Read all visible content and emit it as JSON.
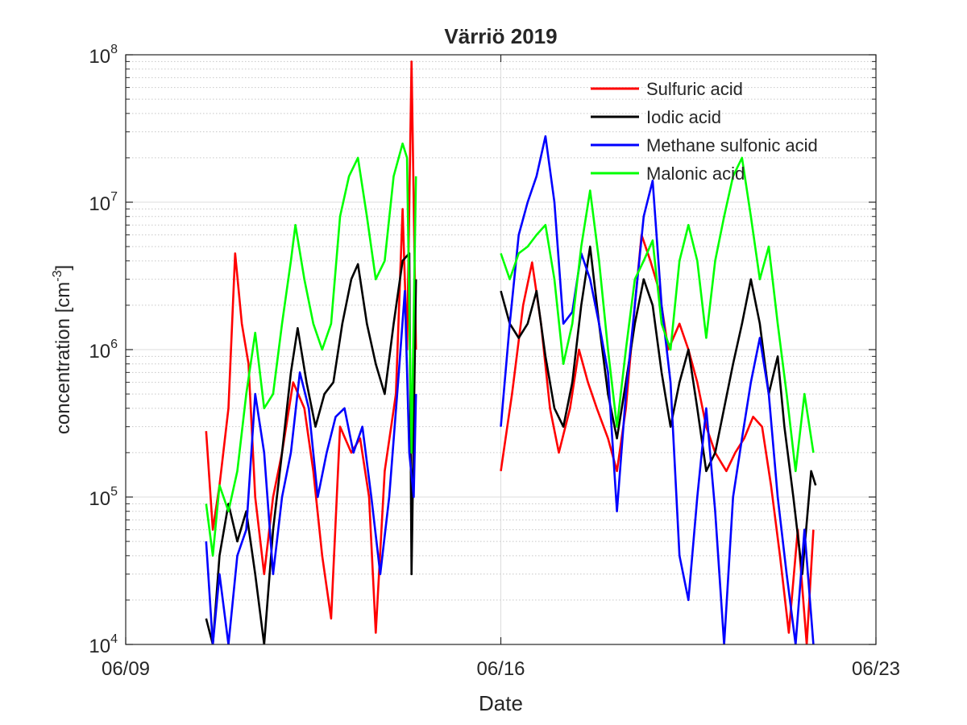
{
  "chart_data": {
    "type": "line",
    "title": "Värriö 2019",
    "xlabel": "Date",
    "ylabel": "concentration [cm",
    "ylabel_sup": "-3",
    "ylabel_end": "]",
    "y_scale": "log",
    "ylim": [
      10000,
      100000000
    ],
    "xlim": [
      "06/09",
      "06/23"
    ],
    "x_ticks": [
      "06/09",
      "06/16",
      "06/23"
    ],
    "y_ticks": [
      {
        "base": "10",
        "exp": "4"
      },
      {
        "base": "10",
        "exp": "5"
      },
      {
        "base": "10",
        "exp": "6"
      },
      {
        "base": "10",
        "exp": "7"
      },
      {
        "base": "10",
        "exp": "8"
      }
    ],
    "grid": true,
    "legend_position": "top-right",
    "series": [
      {
        "name": "Sulfuric acid",
        "color": "#ff0000",
        "points": [
          [
            "06/10 12:00",
            280000
          ],
          [
            "06/10 15:00",
            60000
          ],
          [
            "06/10 18:00",
            120000
          ],
          [
            "06/10 22:00",
            400000
          ],
          [
            "06/11 01:00",
            4500000
          ],
          [
            "06/11 04:00",
            1500000
          ],
          [
            "06/11 07:00",
            800000
          ],
          [
            "06/11 10:00",
            100000
          ],
          [
            "06/11 14:00",
            30000
          ],
          [
            "06/11 18:00",
            100000
          ],
          [
            "06/11 22:00",
            200000
          ],
          [
            "06/12 03:00",
            600000
          ],
          [
            "06/12 08:00",
            400000
          ],
          [
            "06/12 12:00",
            150000
          ],
          [
            "06/12 16:00",
            40000
          ],
          [
            "06/12 20:00",
            15000
          ],
          [
            "06/13 00:00",
            300000
          ],
          [
            "06/13 05:00",
            200000
          ],
          [
            "06/13 09:00",
            250000
          ],
          [
            "06/13 13:00",
            100000
          ],
          [
            "06/13 16:00",
            12000
          ],
          [
            "06/13 20:00",
            150000
          ],
          [
            "06/14 01:00",
            500000
          ],
          [
            "06/14 04:00",
            9000000
          ],
          [
            "06/14 06:00",
            1000000
          ],
          [
            "06/14 08:00",
            90000000
          ],
          [
            "06/14 10:00",
            1000000
          ],
          [
            "06/16 00:00",
            150000
          ],
          [
            "06/16 05:00",
            500000
          ],
          [
            "06/16 10:00",
            2000000
          ],
          [
            "06/16 14:00",
            3900000
          ],
          [
            "06/16 18:00",
            1500000
          ],
          [
            "06/16 22:00",
            400000
          ],
          [
            "06/17 02:00",
            200000
          ],
          [
            "06/17 07:00",
            400000
          ],
          [
            "06/17 11:00",
            1000000
          ],
          [
            "06/17 15:00",
            600000
          ],
          [
            "06/17 19:00",
            400000
          ],
          [
            "06/18 00:00",
            250000
          ],
          [
            "06/18 04:00",
            150000
          ],
          [
            "06/18 08:00",
            400000
          ],
          [
            "06/18 12:00",
            2000000
          ],
          [
            "06/18 15:00",
            6000000
          ],
          [
            "06/18 19:00",
            4000000
          ],
          [
            "06/18 23:00",
            2500000
          ],
          [
            "06/19 03:00",
            1000000
          ],
          [
            "06/19 08:00",
            1500000
          ],
          [
            "06/19 12:00",
            1000000
          ],
          [
            "06/19 16:00",
            600000
          ],
          [
            "06/19 20:00",
            300000
          ],
          [
            "06/20 00:00",
            200000
          ],
          [
            "06/20 05:00",
            150000
          ],
          [
            "06/20 09:00",
            200000
          ],
          [
            "06/20 13:00",
            250000
          ],
          [
            "06/20 17:00",
            350000
          ],
          [
            "06/20 21:00",
            300000
          ],
          [
            "06/21 01:00",
            120000
          ],
          [
            "06/21 05:00",
            40000
          ],
          [
            "06/21 09:00",
            12000
          ],
          [
            "06/21 13:00",
            60000
          ],
          [
            "06/21 17:00",
            10000
          ],
          [
            "06/21 20:00",
            60000
          ]
        ]
      },
      {
        "name": "Iodic acid",
        "color": "#000000",
        "points": [
          [
            "06/10 12:00",
            15000
          ],
          [
            "06/10 15:00",
            10000
          ],
          [
            "06/10 18:00",
            40000
          ],
          [
            "06/10 22:00",
            90000
          ],
          [
            "06/11 02:00",
            50000
          ],
          [
            "06/11 06:00",
            80000
          ],
          [
            "06/11 10:00",
            30000
          ],
          [
            "06/11 14:00",
            10000
          ],
          [
            "06/11 18:00",
            60000
          ],
          [
            "06/11 22:00",
            200000
          ],
          [
            "06/12 02:00",
            700000
          ],
          [
            "06/12 05:00",
            1400000
          ],
          [
            "06/12 09:00",
            600000
          ],
          [
            "06/12 13:00",
            300000
          ],
          [
            "06/12 17:00",
            500000
          ],
          [
            "06/12 21:00",
            600000
          ],
          [
            "06/13 01:00",
            1500000
          ],
          [
            "06/13 05:00",
            3000000
          ],
          [
            "06/13 08:00",
            3800000
          ],
          [
            "06/13 12:00",
            1500000
          ],
          [
            "06/13 16:00",
            800000
          ],
          [
            "06/13 20:00",
            500000
          ],
          [
            "06/14 00:00",
            1500000
          ],
          [
            "06/14 04:00",
            4000000
          ],
          [
            "06/14 07:00",
            4500000
          ],
          [
            "06/14 08:00",
            30000
          ],
          [
            "06/14 10:00",
            3000000
          ],
          [
            "06/16 00:00",
            2500000
          ],
          [
            "06/16 04:00",
            1500000
          ],
          [
            "06/16 08:00",
            1200000
          ],
          [
            "06/16 12:00",
            1500000
          ],
          [
            "06/16 16:00",
            2500000
          ],
          [
            "06/16 20:00",
            900000
          ],
          [
            "06/17 00:00",
            400000
          ],
          [
            "06/17 04:00",
            300000
          ],
          [
            "06/17 08:00",
            600000
          ],
          [
            "06/17 12:00",
            2000000
          ],
          [
            "06/17 16:00",
            5000000
          ],
          [
            "06/17 20:00",
            1500000
          ],
          [
            "06/18 00:00",
            500000
          ],
          [
            "06/18 04:00",
            250000
          ],
          [
            "06/18 08:00",
            600000
          ],
          [
            "06/18 12:00",
            1500000
          ],
          [
            "06/18 16:00",
            3000000
          ],
          [
            "06/18 20:00",
            2000000
          ],
          [
            "06/19 00:00",
            700000
          ],
          [
            "06/19 04:00",
            300000
          ],
          [
            "06/19 08:00",
            600000
          ],
          [
            "06/19 12:00",
            1000000
          ],
          [
            "06/19 16:00",
            400000
          ],
          [
            "06/19 20:00",
            150000
          ],
          [
            "06/20 00:00",
            200000
          ],
          [
            "06/20 04:00",
            400000
          ],
          [
            "06/20 08:00",
            800000
          ],
          [
            "06/20 12:00",
            1500000
          ],
          [
            "06/20 16:00",
            3000000
          ],
          [
            "06/20 20:00",
            1500000
          ],
          [
            "06/21 00:00",
            500000
          ],
          [
            "06/21 04:00",
            900000
          ],
          [
            "06/21 07:00",
            300000
          ],
          [
            "06/21 11:00",
            100000
          ],
          [
            "06/21 15:00",
            30000
          ],
          [
            "06/21 19:00",
            150000
          ],
          [
            "06/21 21:00",
            120000
          ]
        ]
      },
      {
        "name": "Methane sulfonic acid",
        "color": "#0000ff",
        "points": [
          [
            "06/10 12:00",
            50000
          ],
          [
            "06/10 15:00",
            10000
          ],
          [
            "06/10 18:00",
            30000
          ],
          [
            "06/10 22:00",
            10000
          ],
          [
            "06/11 02:00",
            40000
          ],
          [
            "06/11 06:00",
            60000
          ],
          [
            "06/11 10:00",
            500000
          ],
          [
            "06/11 14:00",
            200000
          ],
          [
            "06/11 18:00",
            30000
          ],
          [
            "06/11 22:00",
            100000
          ],
          [
            "06/12 02:00",
            200000
          ],
          [
            "06/12 06:00",
            700000
          ],
          [
            "06/12 10:00",
            400000
          ],
          [
            "06/12 14:00",
            100000
          ],
          [
            "06/12 18:00",
            200000
          ],
          [
            "06/12 22:00",
            350000
          ],
          [
            "06/13 02:00",
            400000
          ],
          [
            "06/13 06:00",
            200000
          ],
          [
            "06/13 10:00",
            300000
          ],
          [
            "06/13 14:00",
            100000
          ],
          [
            "06/13 18:00",
            30000
          ],
          [
            "06/13 22:00",
            100000
          ],
          [
            "06/14 02:00",
            600000
          ],
          [
            "06/14 05:00",
            2500000
          ],
          [
            "06/14 07:00",
            200000
          ],
          [
            "06/14 09:00",
            100000
          ],
          [
            "06/14 10:00",
            500000
          ],
          [
            "06/16 00:00",
            300000
          ],
          [
            "06/16 04:00",
            1500000
          ],
          [
            "06/16 08:00",
            6000000
          ],
          [
            "06/16 12:00",
            10000000
          ],
          [
            "06/16 16:00",
            15000000
          ],
          [
            "06/16 20:00",
            28000000
          ],
          [
            "06/17 00:00",
            10000000
          ],
          [
            "06/17 04:00",
            1500000
          ],
          [
            "06/17 08:00",
            1800000
          ],
          [
            "06/17 12:00",
            4500000
          ],
          [
            "06/17 16:00",
            3000000
          ],
          [
            "06/17 20:00",
            1500000
          ],
          [
            "06/18 00:00",
            700000
          ],
          [
            "06/18 04:00",
            80000
          ],
          [
            "06/18 08:00",
            500000
          ],
          [
            "06/18 12:00",
            2000000
          ],
          [
            "06/18 16:00",
            8000000
          ],
          [
            "06/18 20:00",
            14000000
          ],
          [
            "06/19 00:00",
            2000000
          ],
          [
            "06/19 04:00",
            600000
          ],
          [
            "06/19 08:00",
            40000
          ],
          [
            "06/19 12:00",
            20000
          ],
          [
            "06/19 16:00",
            100000
          ],
          [
            "06/19 20:00",
            400000
          ],
          [
            "06/20 00:00",
            80000
          ],
          [
            "06/20 04:00",
            10000
          ],
          [
            "06/20 08:00",
            100000
          ],
          [
            "06/20 12:00",
            250000
          ],
          [
            "06/20 16:00",
            600000
          ],
          [
            "06/20 20:00",
            1200000
          ],
          [
            "06/21 00:00",
            500000
          ],
          [
            "06/21 04:00",
            100000
          ],
          [
            "06/21 08:00",
            30000
          ],
          [
            "06/21 12:00",
            10000
          ],
          [
            "06/21 16:00",
            60000
          ],
          [
            "06/21 20:00",
            10000
          ]
        ]
      },
      {
        "name": "Malonic acid",
        "color": "#00ff00",
        "points": [
          [
            "06/10 12:00",
            90000
          ],
          [
            "06/10 15:00",
            40000
          ],
          [
            "06/10 18:00",
            120000
          ],
          [
            "06/10 22:00",
            80000
          ],
          [
            "06/11 02:00",
            150000
          ],
          [
            "06/11 06:00",
            500000
          ],
          [
            "06/11 10:00",
            1300000
          ],
          [
            "06/11 14:00",
            400000
          ],
          [
            "06/11 18:00",
            500000
          ],
          [
            "06/11 22:00",
            1500000
          ],
          [
            "06/12 02:00",
            4000000
          ],
          [
            "06/12 04:00",
            7000000
          ],
          [
            "06/12 08:00",
            3000000
          ],
          [
            "06/12 12:00",
            1500000
          ],
          [
            "06/12 16:00",
            1000000
          ],
          [
            "06/12 20:00",
            1500000
          ],
          [
            "06/13 00:00",
            8000000
          ],
          [
            "06/13 04:00",
            15000000
          ],
          [
            "06/13 08:00",
            20000000
          ],
          [
            "06/13 12:00",
            8000000
          ],
          [
            "06/13 16:00",
            3000000
          ],
          [
            "06/13 20:00",
            4000000
          ],
          [
            "06/14 00:00",
            15000000
          ],
          [
            "06/14 04:00",
            25000000
          ],
          [
            "06/14 06:00",
            20000000
          ],
          [
            "06/14 08:00",
            200000
          ],
          [
            "06/14 10:00",
            15000000
          ],
          [
            "06/16 00:00",
            4500000
          ],
          [
            "06/16 04:00",
            3000000
          ],
          [
            "06/16 08:00",
            4500000
          ],
          [
            "06/16 12:00",
            5000000
          ],
          [
            "06/16 16:00",
            6000000
          ],
          [
            "06/16 20:00",
            7000000
          ],
          [
            "06/17 00:00",
            3000000
          ],
          [
            "06/17 04:00",
            800000
          ],
          [
            "06/17 08:00",
            1500000
          ],
          [
            "06/17 12:00",
            5000000
          ],
          [
            "06/17 16:00",
            12000000
          ],
          [
            "06/17 20:00",
            4000000
          ],
          [
            "06/18 00:00",
            1000000
          ],
          [
            "06/18 04:00",
            300000
          ],
          [
            "06/18 08:00",
            1000000
          ],
          [
            "06/18 12:00",
            3000000
          ],
          [
            "06/18 16:00",
            4000000
          ],
          [
            "06/18 20:00",
            5500000
          ],
          [
            "06/19 00:00",
            1500000
          ],
          [
            "06/19 04:00",
            1000000
          ],
          [
            "06/19 08:00",
            4000000
          ],
          [
            "06/19 12:00",
            7000000
          ],
          [
            "06/19 16:00",
            4000000
          ],
          [
            "06/19 20:00",
            1200000
          ],
          [
            "06/20 00:00",
            4000000
          ],
          [
            "06/20 04:00",
            8000000
          ],
          [
            "06/20 08:00",
            15000000
          ],
          [
            "06/20 12:00",
            20000000
          ],
          [
            "06/20 16:00",
            8000000
          ],
          [
            "06/20 20:00",
            3000000
          ],
          [
            "06/21 00:00",
            5000000
          ],
          [
            "06/21 04:00",
            1500000
          ],
          [
            "06/21 08:00",
            500000
          ],
          [
            "06/21 12:00",
            150000
          ],
          [
            "06/21 16:00",
            500000
          ],
          [
            "06/21 20:00",
            200000
          ]
        ]
      }
    ]
  }
}
